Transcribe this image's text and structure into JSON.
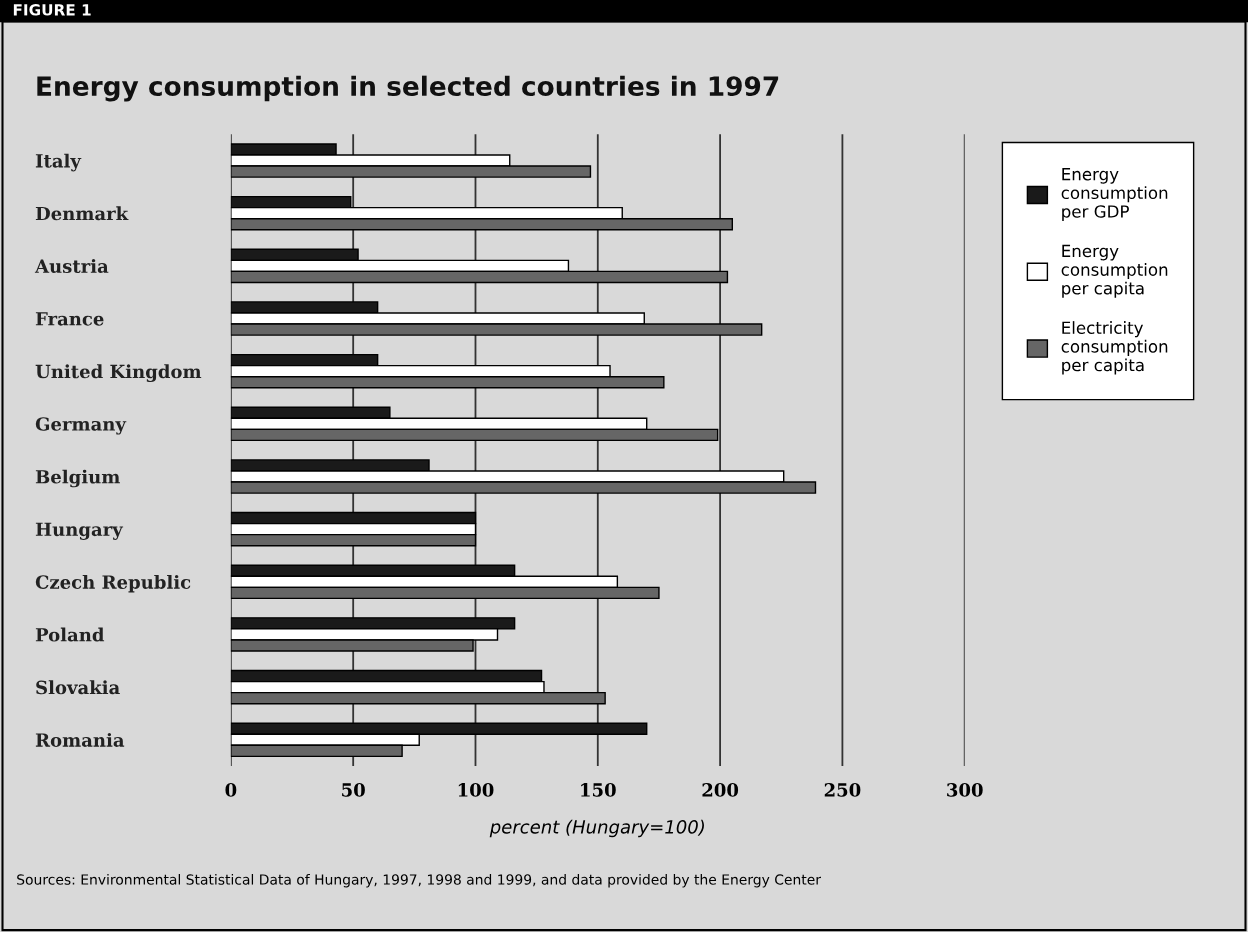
{
  "chart_data": {
    "type": "bar",
    "orientation": "horizontal",
    "title": "Energy consumption in selected countries in 1997",
    "xlabel": "percent (Hungary=100)",
    "categories": [
      "Italy",
      "Denmark",
      "Austria",
      "France",
      "United Kingdom",
      "Germany",
      "Belgium",
      "Hungary",
      "Czech Republic",
      "Poland",
      "Slovakia",
      "Romania"
    ],
    "series": [
      {
        "name": "Energy\nconsumption\nper GDP",
        "color": "#1a1a1a",
        "values": [
          43,
          49,
          52,
          60,
          60,
          65,
          81,
          100,
          116,
          116,
          127,
          170
        ]
      },
      {
        "name": "Energy\nconsumption\nper capita",
        "color": "#ffffff",
        "values": [
          114,
          160,
          138,
          169,
          155,
          170,
          226,
          100,
          158,
          109,
          128,
          77
        ]
      },
      {
        "name": "Electricity\nconsumption\nper capita",
        "color": "#666666",
        "values": [
          147,
          205,
          203,
          217,
          177,
          199,
          239,
          100,
          175,
          99,
          153,
          70
        ]
      }
    ],
    "xlim": [
      0,
      300
    ],
    "xticks": [
      0,
      50,
      100,
      150,
      200,
      250,
      300
    ],
    "grid": "x",
    "legend": "top right",
    "annotations": [
      "FIGURE 1",
      "Sources: Environmental Statistical Data of Hungary, 1997, 1998 and 1999, and data provided by the Energy Center"
    ]
  }
}
